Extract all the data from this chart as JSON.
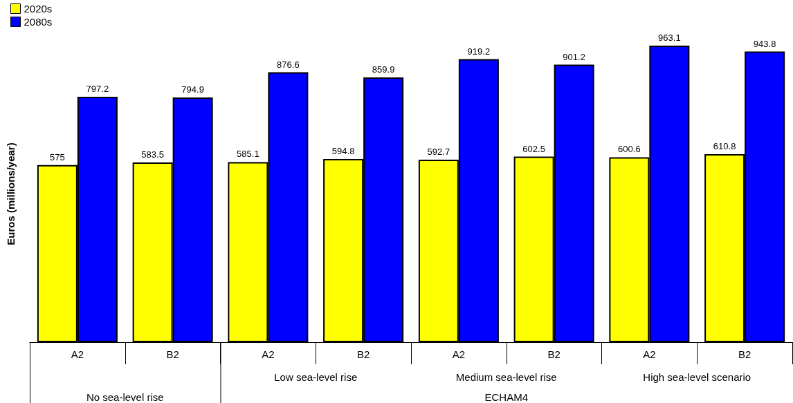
{
  "chart_data": {
    "type": "bar",
    "ylabel": "Euros (millions/year)",
    "categories": [
      "A2",
      "B2",
      "A2",
      "B2",
      "A2",
      "B2",
      "A2",
      "B2"
    ],
    "series": [
      {
        "name": "2020s",
        "color": "#ffff00",
        "values": [
          575,
          583.5,
          585.1,
          594.8,
          592.7,
          602.5,
          600.6,
          610.8
        ]
      },
      {
        "name": "2080s",
        "color": "#0000ff",
        "values": [
          797.2,
          794.9,
          876.6,
          859.9,
          919.2,
          901.2,
          963.1,
          943.8
        ]
      }
    ],
    "tick_labels": "x",
    "data_labels": true,
    "legend": "top left",
    "grid": false,
    "annotations": [
      "No sea-level rise",
      "Low sea-level rise",
      "Medium sea-level rise",
      "High sea-level scenario",
      "ECHAM4"
    ]
  }
}
